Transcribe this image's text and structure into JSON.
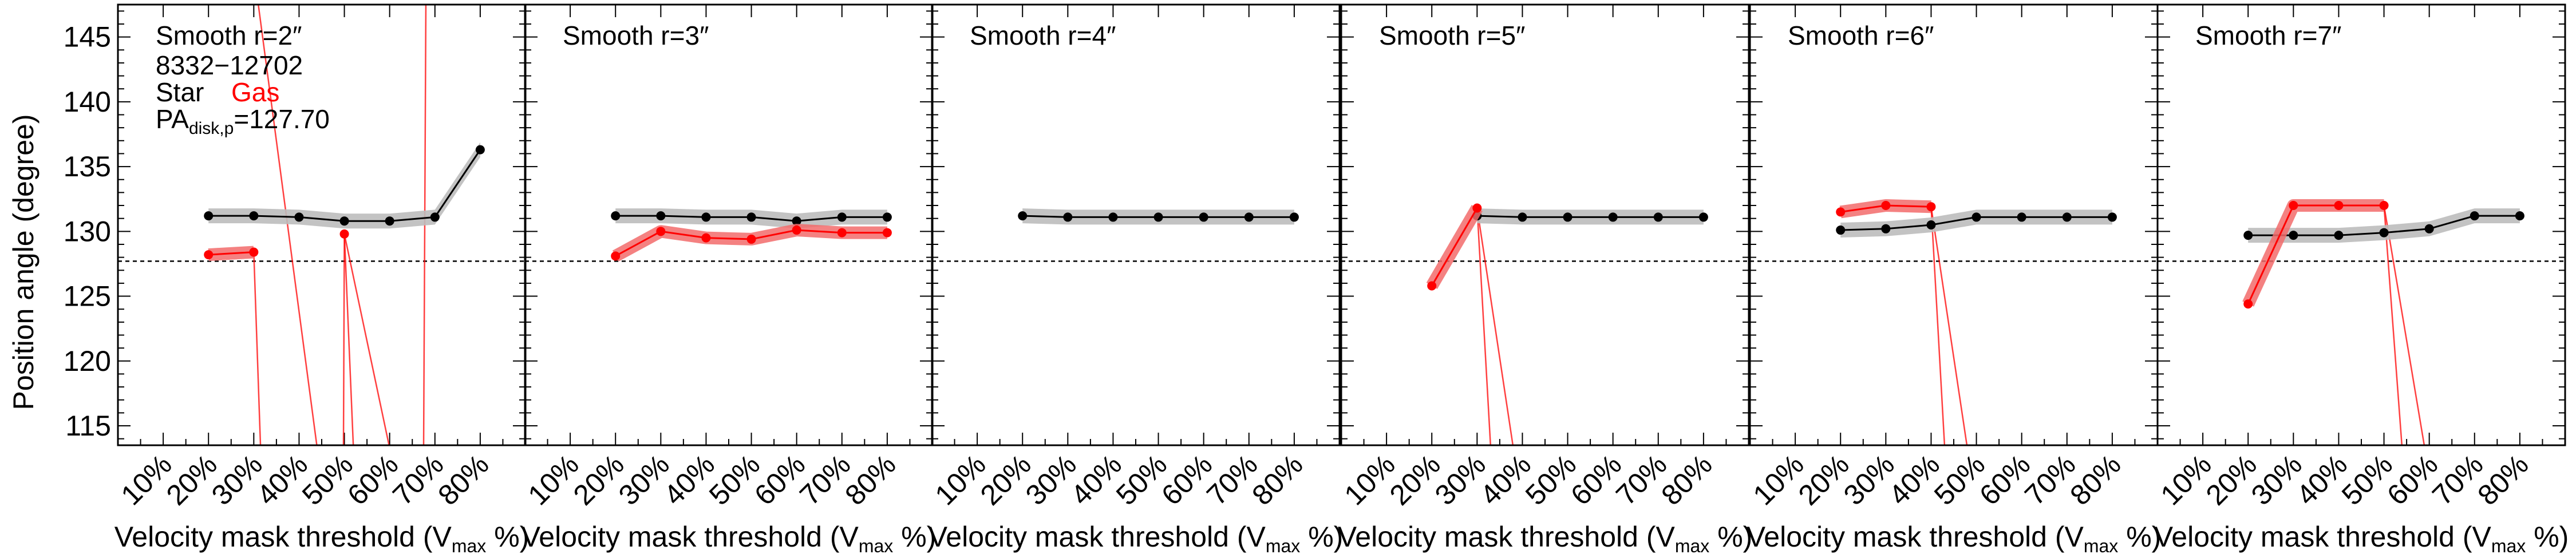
{
  "figure": {
    "ylabel": "Position angle (degree)",
    "xlabel_main": "Velocity mask threshold (V",
    "xlabel_sub": "max",
    "xlabel_tail": " %)"
  },
  "annotations": {
    "galaxy_id": "8332−12702",
    "star_label": "Star",
    "gas_label": "Gas",
    "pa_main": "PA",
    "pa_sub": "disk,p",
    "pa_tail": "=127.70"
  },
  "colors": {
    "star": "#000000",
    "gas": "#ff0000",
    "star_band": "#bdbdbd",
    "gas_band": "#f26b6b"
  },
  "chart_data": {
    "type": "line",
    "xlabel": "Velocity mask threshold (V_max %)",
    "ylabel": "Position angle (degree)",
    "xlim": [
      0,
      90
    ],
    "ylim": [
      113.5,
      147.5
    ],
    "x_ticks": [
      10,
      20,
      30,
      40,
      50,
      60,
      70,
      80
    ],
    "x_tick_labels": [
      "10%",
      "20%",
      "30%",
      "40%",
      "50%",
      "60%",
      "70%",
      "80%"
    ],
    "y_ticks": [
      115,
      120,
      125,
      130,
      135,
      140,
      145
    ],
    "y_tick_labels": [
      "115",
      "120",
      "125",
      "130",
      "135",
      "140",
      "145"
    ],
    "reference_line": 127.7,
    "legend": [
      "Star",
      "Gas"
    ],
    "panels": [
      {
        "title": "Smooth r=2″",
        "star": {
          "x": [
            20,
            30,
            40,
            50,
            60,
            70,
            80
          ],
          "y": [
            131.2,
            131.2,
            131.1,
            130.8,
            130.8,
            131.1,
            136.3
          ]
        },
        "gas": {
          "x": [
            20,
            30,
            50
          ],
          "y": [
            128.2,
            128.4,
            129.8
          ],
          "drops": [
            [
              30,
              31.5
            ],
            [
              31,
              44
            ],
            [
              50,
              49.8
            ],
            [
              50,
              52
            ],
            [
              50,
              60
            ],
            [
              68,
              67.5
            ]
          ]
        }
      },
      {
        "title": "Smooth r=3″",
        "star": {
          "x": [
            20,
            30,
            40,
            50,
            60,
            70,
            80
          ],
          "y": [
            131.2,
            131.2,
            131.1,
            131.1,
            130.8,
            131.1,
            131.1
          ]
        },
        "gas": {
          "x": [
            20,
            30,
            40,
            50,
            60,
            70,
            80
          ],
          "y": [
            128.1,
            130.0,
            129.5,
            129.4,
            130.1,
            129.9,
            129.9
          ],
          "drops": []
        }
      },
      {
        "title": "Smooth r=4″",
        "star": {
          "x": [
            20,
            30,
            40,
            50,
            60,
            70,
            80
          ],
          "y": [
            131.2,
            131.1,
            131.1,
            131.1,
            131.1,
            131.1,
            131.1
          ]
        },
        "gas": {
          "x": [],
          "y": [],
          "drops": []
        }
      },
      {
        "title": "Smooth r=5″",
        "star": {
          "x": [
            30,
            40,
            50,
            60,
            70,
            80
          ],
          "y": [
            131.2,
            131.1,
            131.1,
            131.1,
            131.1,
            131.1
          ]
        },
        "gas": {
          "x": [
            20,
            30
          ],
          "y": [
            125.8,
            131.8
          ],
          "drops": [
            [
              30,
              33
            ],
            [
              30,
              38
            ]
          ]
        }
      },
      {
        "title": "Smooth r=6″",
        "star": {
          "x": [
            20,
            30,
            40,
            50,
            60,
            70,
            80
          ],
          "y": [
            130.1,
            130.2,
            130.5,
            131.1,
            131.1,
            131.1,
            131.1
          ]
        },
        "gas": {
          "x": [
            20,
            30,
            40
          ],
          "y": [
            131.5,
            132.0,
            131.9
          ],
          "drops": [
            [
              40,
              43
            ],
            [
              40,
              48
            ]
          ]
        }
      },
      {
        "title": "Smooth r=7″",
        "star": {
          "x": [
            20,
            30,
            40,
            50,
            60,
            70,
            80
          ],
          "y": [
            129.7,
            129.7,
            129.7,
            129.9,
            130.2,
            131.2,
            131.2
          ]
        },
        "gas": {
          "x": [
            20,
            30,
            40,
            50
          ],
          "y": [
            124.4,
            132.0,
            132.0,
            132.0
          ],
          "drops": [
            [
              50,
              54
            ],
            [
              50,
              59
            ]
          ]
        }
      }
    ]
  }
}
